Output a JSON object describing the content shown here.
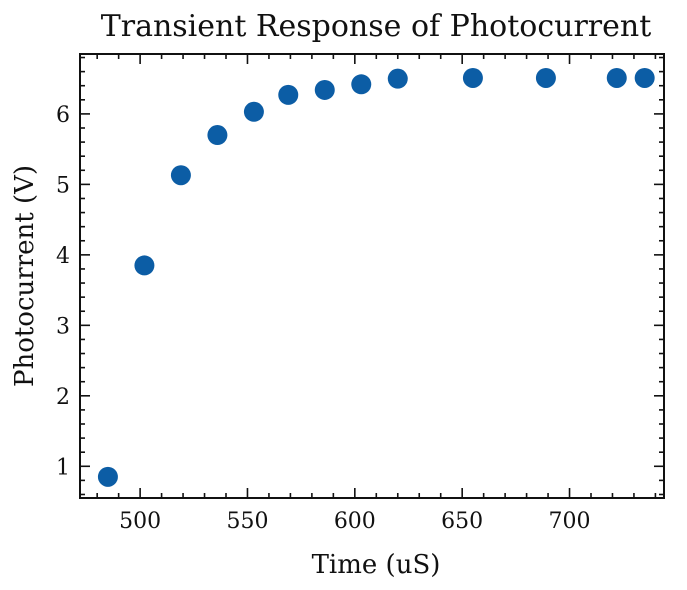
{
  "chart_data": {
    "type": "scatter",
    "title": "Transient Response of Photocurrent",
    "xlabel": "Time (uS)",
    "ylabel": "Photocurrent (V)",
    "xlim": [
      472,
      744
    ],
    "ylim": [
      0.55,
      6.85
    ],
    "x_ticks": [
      500,
      550,
      600,
      650,
      700
    ],
    "y_ticks": [
      1,
      2,
      3,
      4,
      5,
      6
    ],
    "x_minor_step": 10,
    "y_minor_step": 0.2,
    "grid": false,
    "series": [
      {
        "color": "#0c5da5",
        "points": [
          {
            "x": 485,
            "y": 0.85
          },
          {
            "x": 502,
            "y": 3.85
          },
          {
            "x": 519,
            "y": 5.13
          },
          {
            "x": 536,
            "y": 5.7
          },
          {
            "x": 553,
            "y": 6.03
          },
          {
            "x": 569,
            "y": 6.27
          },
          {
            "x": 586,
            "y": 6.34
          },
          {
            "x": 603,
            "y": 6.42
          },
          {
            "x": 620,
            "y": 6.5
          },
          {
            "x": 655,
            "y": 6.51
          },
          {
            "x": 689,
            "y": 6.51
          },
          {
            "x": 722,
            "y": 6.51
          },
          {
            "x": 735,
            "y": 6.51
          }
        ]
      }
    ]
  }
}
